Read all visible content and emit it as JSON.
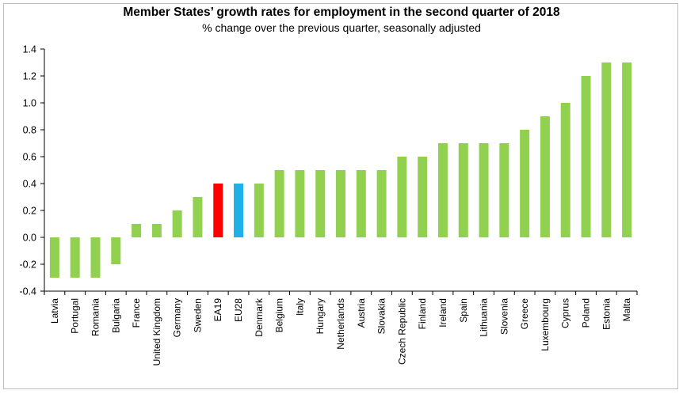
{
  "chart_data": {
    "type": "bar",
    "title": "Member States’ growth rates for employment in the second quarter of 2018",
    "subtitle": "% change over the previous quarter, seasonally adjusted",
    "xlabel": "",
    "ylabel": "",
    "ylim": [
      -0.4,
      1.4
    ],
    "yticks": [
      "1.4",
      "1.2",
      "1.0",
      "0.8",
      "0.6",
      "0.4",
      "0.2",
      "0.0",
      "-0.2",
      "-0.4"
    ],
    "grid": false,
    "legend": "none",
    "categories": [
      "Latvia",
      "Portugal",
      "Romania",
      "Bulgaria",
      "France",
      "United Kingdom",
      "Germany",
      "Sweden",
      "EA19",
      "EU28",
      "Denmark",
      "Belgium",
      "Italy",
      "Hungary",
      "Netherlands",
      "Austria",
      "Slovakia",
      "Czech Republic",
      "Finland",
      "Ireland",
      "Spain",
      "Lithuania",
      "Slovenia",
      "Greece",
      "Luxembourg",
      "Cyprus",
      "Poland",
      "Estonia",
      "Malta"
    ],
    "values": [
      -0.3,
      -0.3,
      -0.3,
      -0.2,
      0.1,
      0.1,
      0.2,
      0.3,
      0.4,
      0.4,
      0.4,
      0.5,
      0.5,
      0.5,
      0.5,
      0.5,
      0.5,
      0.6,
      0.6,
      0.7,
      0.7,
      0.7,
      0.7,
      0.8,
      0.9,
      1.0,
      1.2,
      1.3,
      1.3
    ],
    "colors": {
      "default": "#92d050",
      "EA19": "#ff0000",
      "EU28": "#1fb0e8"
    }
  }
}
